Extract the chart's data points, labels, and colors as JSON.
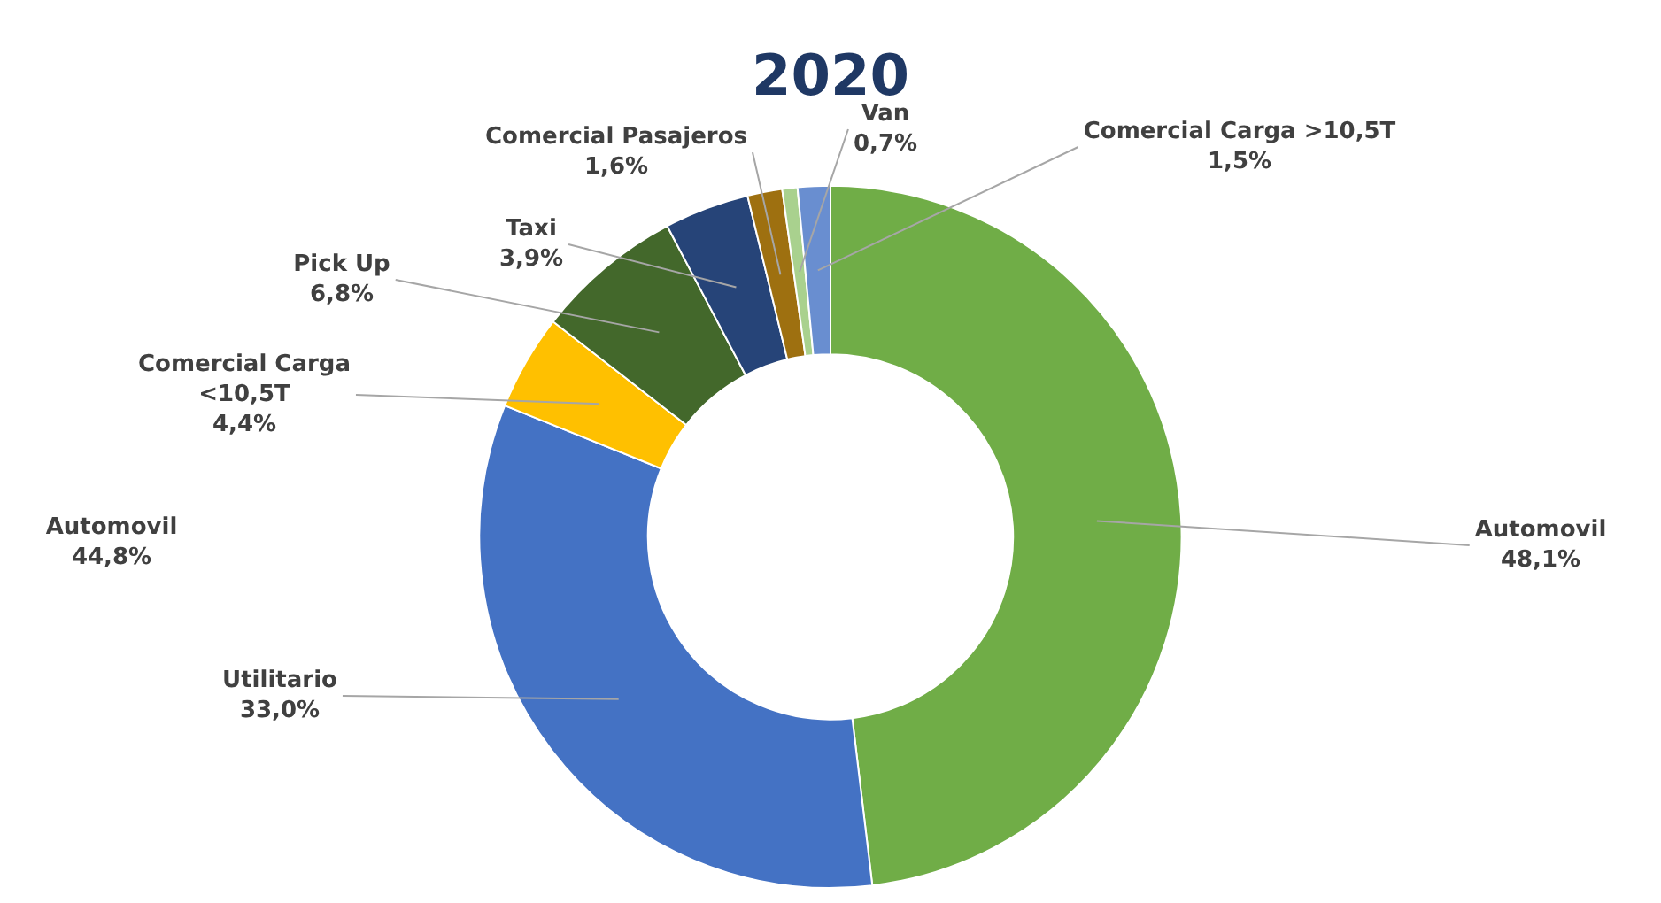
{
  "chart_data": {
    "type": "donut",
    "title": "2020",
    "categories": [
      "Automovil",
      "Utilitario",
      "Comercial Carga <10,5T",
      "Pick Up",
      "Taxi",
      "Comercial Pasajeros",
      "Van",
      "Comercial Carga >10,5T"
    ],
    "values": [
      48.1,
      33.0,
      4.4,
      6.8,
      3.9,
      1.6,
      0.7,
      1.5
    ],
    "value_labels": [
      "48,1%",
      "33,0%",
      "4,4%",
      "6,8%",
      "3,9%",
      "1,6%",
      "0,7%",
      "1,5%"
    ],
    "colors": [
      "#70ad47",
      "#4472c4",
      "#ffc000",
      "#43682b",
      "#264478",
      "#9e7010",
      "#a9d18e",
      "#698ed0"
    ],
    "annotations": [
      "Automovil 44,8%"
    ],
    "legend": false
  }
}
